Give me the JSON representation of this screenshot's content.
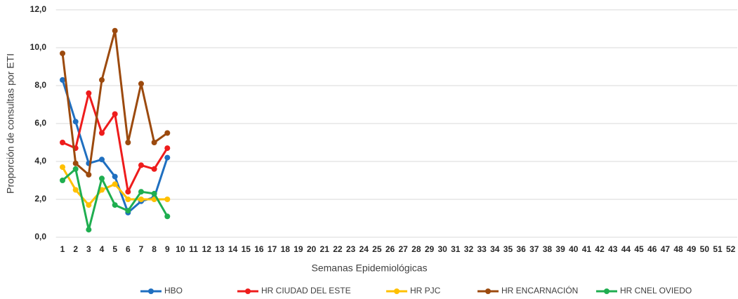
{
  "chart_data": {
    "type": "line",
    "x_label": "Semanas Epidemiológicas",
    "y_label": "Proporción de consultas por ETI",
    "categories": [
      "1",
      "2",
      "3",
      "4",
      "5",
      "6",
      "7",
      "8",
      "9",
      "10",
      "11",
      "12",
      "13",
      "14",
      "15",
      "16",
      "17",
      "18",
      "19",
      "20",
      "21",
      "22",
      "23",
      "24",
      "25",
      "26",
      "27",
      "28",
      "29",
      "30",
      "31",
      "32",
      "33",
      "34",
      "35",
      "36",
      "37",
      "38",
      "39",
      "40",
      "41",
      "42",
      "43",
      "44",
      "45",
      "46",
      "47",
      "48",
      "49",
      "50",
      "51",
      "52"
    ],
    "ylim": [
      0,
      12
    ],
    "yticks": [
      {
        "value": 0,
        "label": "0,0"
      },
      {
        "value": 2,
        "label": "2,0"
      },
      {
        "value": 4,
        "label": "4,0"
      },
      {
        "value": 6,
        "label": "6,0"
      },
      {
        "value": 8,
        "label": "8,0"
      },
      {
        "value": 10,
        "label": "10,0"
      },
      {
        "value": 12,
        "label": "12,0"
      }
    ],
    "grid": true,
    "legend": "bottom",
    "series": [
      {
        "name": "HBO",
        "color": "#1f6fc0",
        "values": [
          8.3,
          6.1,
          3.9,
          4.1,
          3.2,
          1.3,
          1.9,
          2.1,
          4.2,
          null,
          null,
          null,
          null,
          null,
          null,
          null,
          null,
          null,
          null,
          null,
          null,
          null,
          null,
          null,
          null,
          null,
          null,
          null,
          null,
          null,
          null,
          null,
          null,
          null,
          null,
          null,
          null,
          null,
          null,
          null,
          null,
          null,
          null,
          null,
          null,
          null,
          null,
          null,
          null,
          null,
          null,
          null
        ]
      },
      {
        "name": "HR CIUDAD DEL ESTE",
        "color": "#ee1c1c",
        "values": [
          5.0,
          4.7,
          7.6,
          5.5,
          6.5,
          2.4,
          3.8,
          3.6,
          4.7,
          null,
          null,
          null,
          null,
          null,
          null,
          null,
          null,
          null,
          null,
          null,
          null,
          null,
          null,
          null,
          null,
          null,
          null,
          null,
          null,
          null,
          null,
          null,
          null,
          null,
          null,
          null,
          null,
          null,
          null,
          null,
          null,
          null,
          null,
          null,
          null,
          null,
          null,
          null,
          null,
          null,
          null,
          null
        ]
      },
      {
        "name": "HR PJC",
        "color": "#ffc000",
        "values": [
          3.7,
          2.5,
          1.7,
          2.5,
          2.8,
          2.0,
          2.0,
          2.0,
          2.0,
          null,
          null,
          null,
          null,
          null,
          null,
          null,
          null,
          null,
          null,
          null,
          null,
          null,
          null,
          null,
          null,
          null,
          null,
          null,
          null,
          null,
          null,
          null,
          null,
          null,
          null,
          null,
          null,
          null,
          null,
          null,
          null,
          null,
          null,
          null,
          null,
          null,
          null,
          null,
          null,
          null,
          null,
          null
        ]
      },
      {
        "name": "HR ENCARNACIÓN",
        "color": "#9c4a0e",
        "values": [
          9.7,
          3.9,
          3.3,
          8.3,
          10.9,
          5.0,
          8.1,
          5.0,
          5.5,
          null,
          null,
          null,
          null,
          null,
          null,
          null,
          null,
          null,
          null,
          null,
          null,
          null,
          null,
          null,
          null,
          null,
          null,
          null,
          null,
          null,
          null,
          null,
          null,
          null,
          null,
          null,
          null,
          null,
          null,
          null,
          null,
          null,
          null,
          null,
          null,
          null,
          null,
          null,
          null,
          null,
          null,
          null
        ]
      },
      {
        "name": "HR CNEL OVIEDO",
        "color": "#1fae50",
        "values": [
          3.0,
          3.6,
          0.4,
          3.1,
          1.7,
          1.4,
          2.4,
          2.3,
          1.1,
          null,
          null,
          null,
          null,
          null,
          null,
          null,
          null,
          null,
          null,
          null,
          null,
          null,
          null,
          null,
          null,
          null,
          null,
          null,
          null,
          null,
          null,
          null,
          null,
          null,
          null,
          null,
          null,
          null,
          null,
          null,
          null,
          null,
          null,
          null,
          null,
          null,
          null,
          null,
          null,
          null,
          null,
          null
        ]
      }
    ]
  }
}
